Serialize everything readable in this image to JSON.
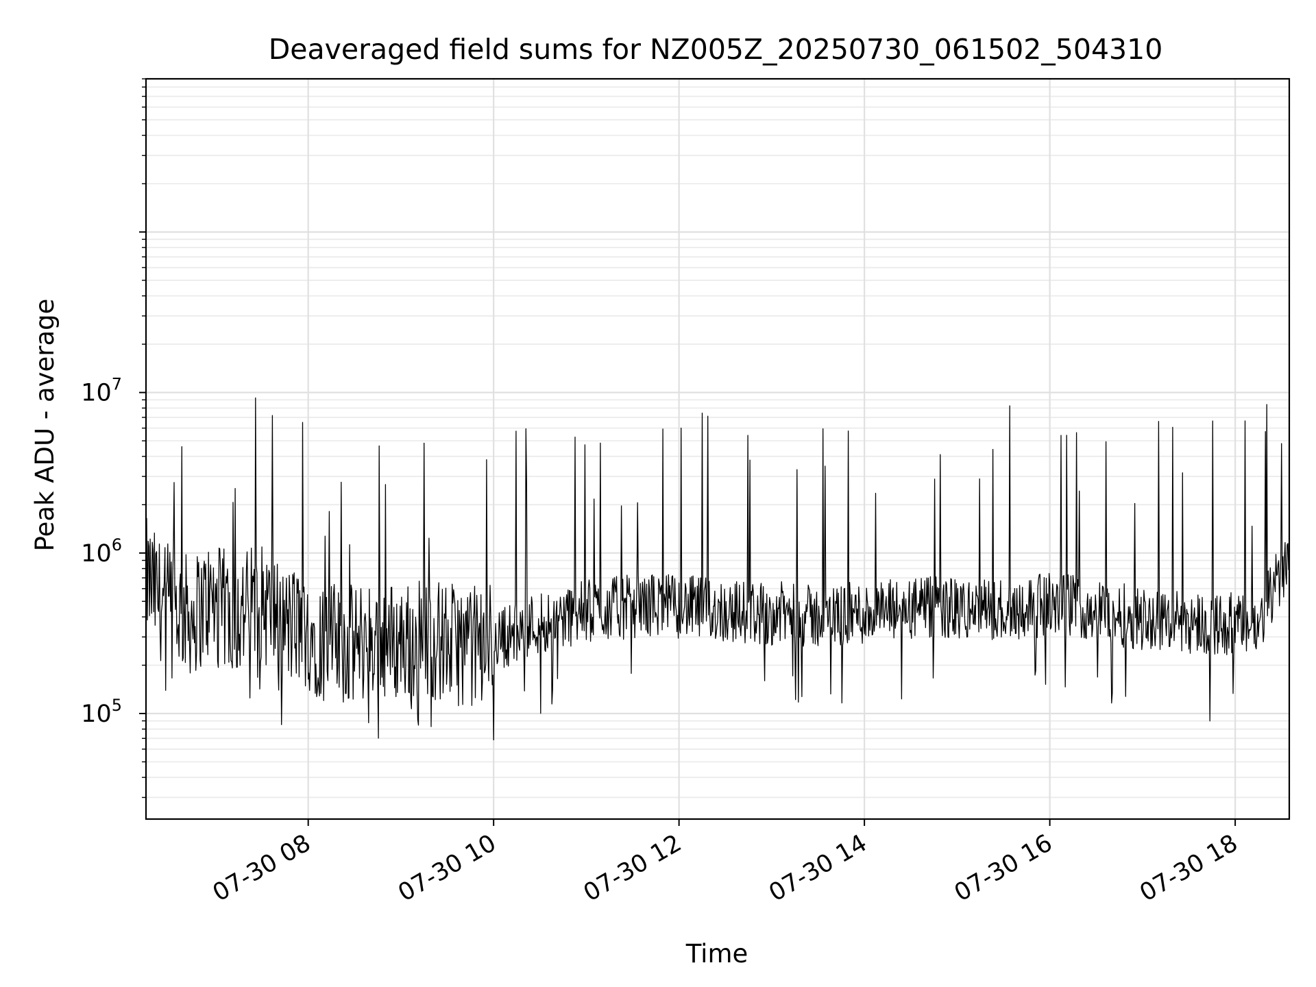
{
  "chart_data": {
    "type": "line",
    "title": "Deaveraged field sums for NZ005Z_20250730_061502_504310",
    "xlabel": "Time",
    "ylabel": "Peak ADU - average",
    "x_range": [
      "07-30 06:15",
      "07-30 18:35"
    ],
    "ylim": [
      22000,
      900000000
    ],
    "yscale": "log",
    "grid": "on (major and minor)",
    "x_ticks": [
      "07-30 08",
      "07-30 10",
      "07-30 12",
      "07-30 14",
      "07-30 16",
      "07-30 18"
    ],
    "y_ticks": [
      {
        "base": "10",
        "exp": "5",
        "value": 100000
      },
      {
        "base": "10",
        "exp": "6",
        "value": 1000000
      },
      {
        "base": "10",
        "exp": "7",
        "value": 10000000
      }
    ],
    "line_color": "#000000",
    "series": [
      {
        "x": [
          "07-30 06:15",
          "07-30 06:25",
          "07-30 06:35",
          "07-30 06:45",
          "07-30 06:55",
          "07-30 07:05",
          "07-30 07:15",
          "07-30 07:25",
          "07-30 07:35",
          "07-30 07:45",
          "07-30 07:55",
          "07-30 08:05",
          "07-30 08:15",
          "07-30 08:25",
          "07-30 08:35",
          "07-30 08:45",
          "07-30 08:55",
          "07-30 09:05",
          "07-30 09:15",
          "07-30 09:25",
          "07-30 09:35",
          "07-30 09:45",
          "07-30 09:55",
          "07-30 10:05",
          "07-30 10:15",
          "07-30 10:25",
          "07-30 10:35",
          "07-30 10:45",
          "07-30 10:55",
          "07-30 11:05",
          "07-30 11:15",
          "07-30 11:25",
          "07-30 11:35",
          "07-30 11:45",
          "07-30 11:55",
          "07-30 12:05",
          "07-30 12:15",
          "07-30 12:25",
          "07-30 12:35",
          "07-30 12:45",
          "07-30 12:55",
          "07-30 13:05",
          "07-30 13:15",
          "07-30 13:25",
          "07-30 13:35",
          "07-30 13:45",
          "07-30 13:55",
          "07-30 14:05",
          "07-30 14:15",
          "07-30 14:25",
          "07-30 14:35",
          "07-30 14:45",
          "07-30 14:55",
          "07-30 15:05",
          "07-30 15:15",
          "07-30 15:25",
          "07-30 15:35",
          "07-30 15:45",
          "07-30 15:55",
          "07-30 16:05",
          "07-30 16:15",
          "07-30 16:25",
          "07-30 16:35",
          "07-30 16:45",
          "07-30 16:55",
          "07-30 17:05",
          "07-30 17:15",
          "07-30 17:25",
          "07-30 17:35",
          "07-30 17:45",
          "07-30 17:55",
          "07-30 18:05",
          "07-30 18:15",
          "07-30 18:25",
          "07-30 18:35"
        ],
        "y": [
          700000,
          500000,
          450000,
          400000,
          500000,
          450000,
          400000,
          500000,
          450000,
          350000,
          350000,
          300000,
          280000,
          260000,
          280000,
          300000,
          280000,
          280000,
          300000,
          280000,
          270000,
          260000,
          280000,
          300000,
          320000,
          360000,
          380000,
          400000,
          420000,
          440000,
          450000,
          460000,
          470000,
          480000,
          470000,
          460000,
          450000,
          440000,
          430000,
          430000,
          420000,
          420000,
          410000,
          400000,
          400000,
          410000,
          420000,
          420000,
          430000,
          440000,
          450000,
          450000,
          450000,
          440000,
          440000,
          440000,
          450000,
          460000,
          470000,
          480000,
          470000,
          450000,
          430000,
          410000,
          400000,
          390000,
          380000,
          380000,
          370000,
          360000,
          360000,
          350000,
          340000,
          600000,
          1000000
        ]
      }
    ]
  }
}
